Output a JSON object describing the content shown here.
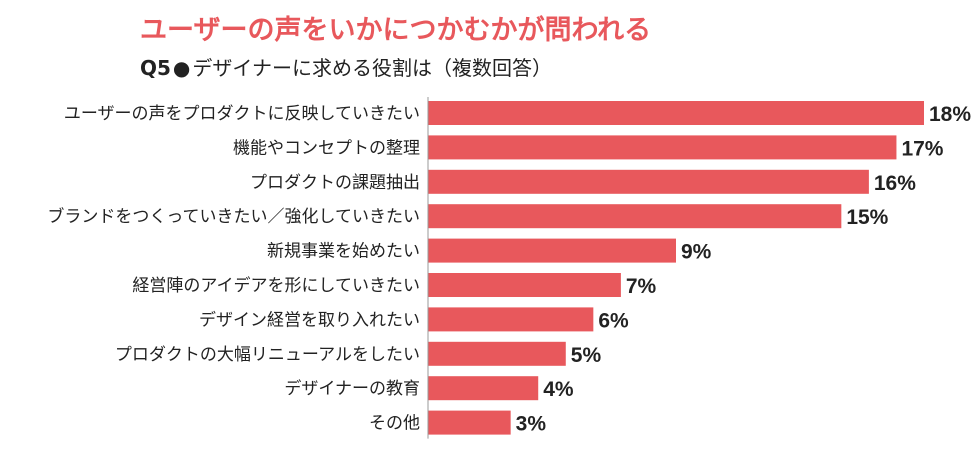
{
  "title": "ユーザーの声をいかにつかむかが問われる",
  "subtitle": {
    "question_no": "Q5",
    "bullet": "●",
    "text": "デザイナーに求める役割は（複数回答）"
  },
  "colors": {
    "accent": "#e8585c",
    "bar": "#e8585c",
    "text": "#222222",
    "axis": "#999999"
  },
  "chart_data": {
    "type": "bar",
    "orientation": "horizontal",
    "title": "ユーザーの声をいかにつかむかが問われる",
    "subtitle": "Q5●デザイナーに求める役割は（複数回答）",
    "categories": [
      "ユーザーの声をプロダクトに反映していきたい",
      "機能やコンセプトの整理",
      "プロダクトの課題抽出",
      "ブランドをつくっていきたい／強化していきたい",
      "新規事業を始めたい",
      "経営陣のアイデアを形にしていきたい",
      "デザイン経営を取り入れたい",
      "プロダクトの大幅リニューアルをしたい",
      "デザイナーの教育",
      "その他"
    ],
    "values": [
      18,
      17,
      16,
      15,
      9,
      7,
      6,
      5,
      4,
      3
    ],
    "value_labels": [
      "18%",
      "17%",
      "16%",
      "15%",
      "9%",
      "7%",
      "6%",
      "5%",
      "4%",
      "3%"
    ],
    "unit": "%",
    "xlim": [
      0,
      18
    ],
    "grid": false,
    "legend": "none"
  }
}
